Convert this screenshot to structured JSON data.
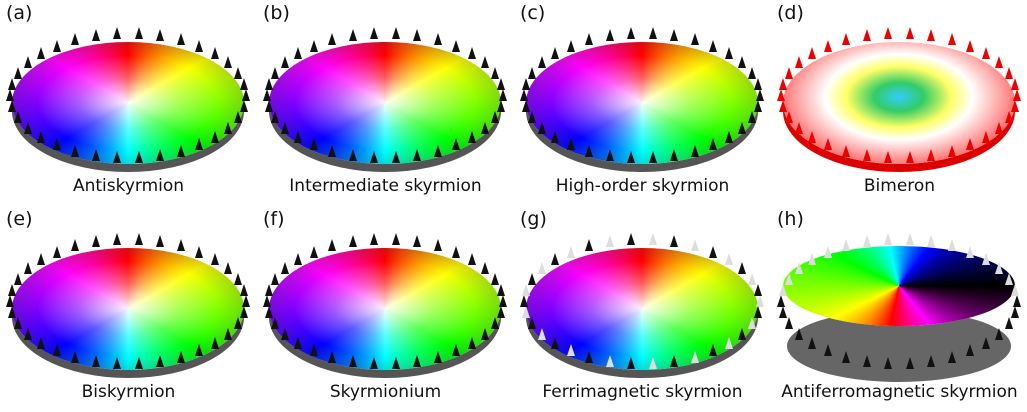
{
  "panels": [
    {
      "label": "(a)",
      "caption": "Antiskyrmion"
    },
    {
      "label": "(b)",
      "caption": "Intermediate skyrmion"
    },
    {
      "label": "(c)",
      "caption": "High-order skyrmion"
    },
    {
      "label": "(d)",
      "caption": "Bimeron"
    },
    {
      "label": "(e)",
      "caption": "Biskyrmion"
    },
    {
      "label": "(f)",
      "caption": "Skyrmionium"
    },
    {
      "label": "(g)",
      "caption": "Ferrimagnetic skyrmion"
    },
    {
      "label": "(h)",
      "caption": "Antiferromagnetic skyrmion"
    }
  ]
}
